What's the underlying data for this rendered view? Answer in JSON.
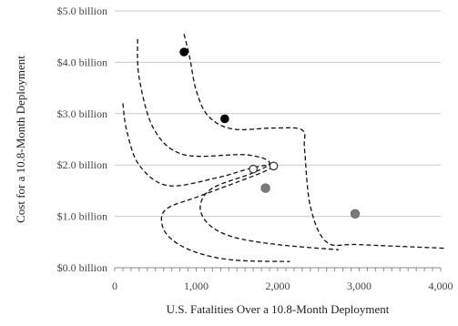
{
  "chart_data": {
    "type": "scatter",
    "title": "",
    "xlabel": "U.S. Fatalities Over a 10.8-Month Deployment",
    "ylabel": "Cost for a  10.8-Month Deployment",
    "xlim": [
      0,
      4000
    ],
    "ylim": [
      0,
      5.0
    ],
    "x_ticks": [
      0,
      1000,
      2000,
      3000,
      4000
    ],
    "x_tick_labels": [
      "0",
      "1,000",
      "2,000",
      "3,000",
      "4,000"
    ],
    "y_ticks": [
      0,
      1,
      2,
      3,
      4,
      5
    ],
    "y_tick_labels": [
      "$0.0 billion",
      "$1.0 billion",
      "$2.0 billion",
      "$3.0 billion",
      "$4.0 billion",
      "$5.0 billion"
    ],
    "grid": "horizontal",
    "series": [
      {
        "marker": "filled-black",
        "color": "#000000",
        "points": [
          {
            "x": 850,
            "y": 4.2
          },
          {
            "x": 1350,
            "y": 2.9
          }
        ]
      },
      {
        "marker": "filled-gray",
        "color": "#7a7a7a",
        "points": [
          {
            "x": 1850,
            "y": 1.55
          },
          {
            "x": 2950,
            "y": 1.05
          }
        ]
      },
      {
        "marker": "open",
        "color": "#ffffff",
        "points": [
          {
            "x": 1700,
            "y": 1.92
          },
          {
            "x": 1950,
            "y": 1.98
          }
        ]
      }
    ],
    "contours": [
      [
        [
          850,
          4.55
        ],
        [
          920,
          4.1
        ],
        [
          1000,
          3.45
        ],
        [
          1150,
          2.95
        ],
        [
          1450,
          2.7
        ],
        [
          1950,
          2.72
        ],
        [
          2300,
          2.68
        ],
        [
          2330,
          2.3
        ],
        [
          2400,
          1.2
        ],
        [
          2600,
          0.5
        ],
        [
          3000,
          0.45
        ],
        [
          4050,
          0.38
        ]
      ],
      [
        [
          280,
          4.45
        ],
        [
          300,
          3.7
        ],
        [
          480,
          2.7
        ],
        [
          850,
          2.2
        ],
        [
          1600,
          2.2
        ],
        [
          1900,
          2.05
        ],
        [
          1700,
          1.85
        ],
        [
          1200,
          1.55
        ],
        [
          1050,
          1.2
        ],
        [
          1150,
          0.85
        ],
        [
          1450,
          0.6
        ],
        [
          2000,
          0.45
        ],
        [
          2750,
          0.35
        ]
      ],
      [
        [
          100,
          3.2
        ],
        [
          150,
          2.65
        ],
        [
          300,
          2.0
        ],
        [
          650,
          1.6
        ],
        [
          1250,
          1.75
        ],
        [
          1700,
          1.95
        ],
        [
          1950,
          2.0
        ],
        [
          1800,
          1.85
        ],
        [
          1050,
          1.4
        ],
        [
          640,
          1.15
        ],
        [
          580,
          0.85
        ],
        [
          700,
          0.55
        ],
        [
          1000,
          0.3
        ],
        [
          1450,
          0.15
        ],
        [
          2150,
          0.12
        ]
      ]
    ]
  }
}
